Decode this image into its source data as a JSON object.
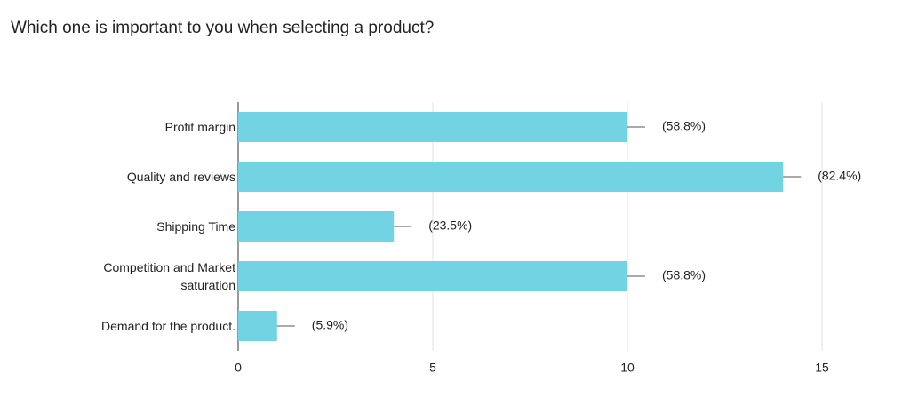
{
  "chart_data": {
    "type": "bar",
    "orientation": "horizontal",
    "title": "Which one is important to you when selecting a product?",
    "categories": [
      "Profit margin",
      "Quality and reviews",
      "Shipping Time",
      "Competition and Market saturation",
      "Demand for the product."
    ],
    "values": [
      10,
      14,
      4,
      10,
      1
    ],
    "percent_labels": [
      "(58.8%)",
      "(82.4%)",
      "(23.5%)",
      "(58.8%)",
      "(5.9%)"
    ],
    "color": "#72d4e2",
    "xlim": [
      0,
      15
    ],
    "xticks": [
      0,
      5,
      10,
      15
    ],
    "grid": true
  }
}
